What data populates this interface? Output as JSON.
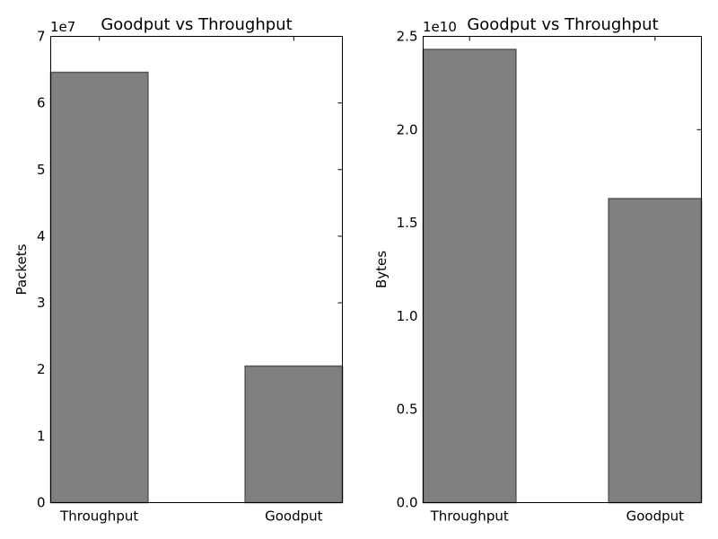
{
  "chart_data": [
    {
      "type": "bar",
      "title": "Goodput vs Throughput",
      "xlabel": "",
      "ylabel": "Packets",
      "offset_label": "1e7",
      "categories": [
        "Throughput",
        "Goodput"
      ],
      "values": [
        64600000,
        20500000
      ],
      "ylim": [
        0,
        70000000
      ],
      "ytick_values": [
        0,
        10000000,
        20000000,
        30000000,
        40000000,
        50000000,
        60000000,
        70000000
      ],
      "ytick_labels": [
        "0",
        "1",
        "2",
        "3",
        "4",
        "5",
        "6",
        "7"
      ],
      "bar_color": "#808080",
      "bar_edge_color": "#555555",
      "grid": false
    },
    {
      "type": "bar",
      "title": "Goodput vs Throughput",
      "xlabel": "",
      "ylabel": "Bytes",
      "offset_label": "1e10",
      "categories": [
        "Throughput",
        "Goodput"
      ],
      "values": [
        24300000000,
        16300000000
      ],
      "ylim": [
        0,
        25000000000
      ],
      "ytick_values": [
        0,
        5000000000,
        10000000000,
        15000000000,
        20000000000,
        25000000000
      ],
      "ytick_labels": [
        "0.0",
        "0.5",
        "1.0",
        "1.5",
        "2.0",
        "2.5"
      ],
      "bar_color": "#808080",
      "bar_edge_color": "#555555",
      "grid": false
    }
  ]
}
